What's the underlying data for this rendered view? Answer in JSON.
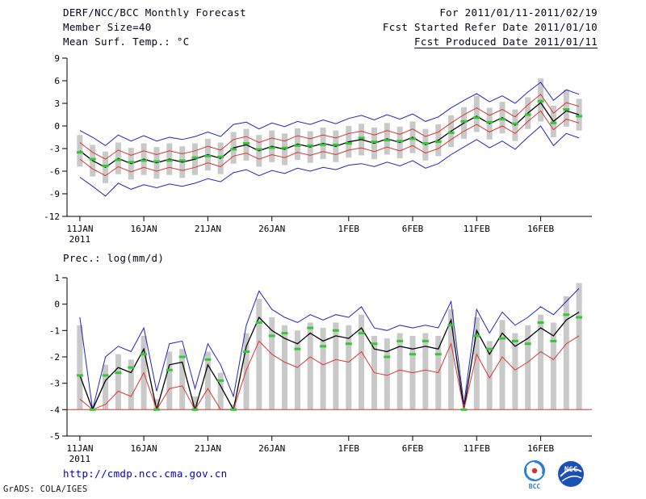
{
  "header": {
    "title": "DERF/NCC/BCC Monthly Forecast",
    "member_size": "Member Size=40",
    "for_range": "For 2011/01/11-2011/02/19",
    "fcst_started": "Fcst Started Refer Date 2011/01/10",
    "fcst_produced": "Fcst Produced Date 2011/01/11"
  },
  "footer": {
    "url": "http://cmdp.ncc.cma.gov.cn",
    "grads_credit": "GrADS: COLA/IGES"
  },
  "logos": {
    "bcc": "BCC",
    "ncc": "NCC"
  },
  "colors": {
    "envelope_blue": "#2222c8",
    "quartile_red": "#e03232",
    "mean_black": "#000000",
    "median_green": "#35c835",
    "spread_bar_gray": "#c9c9c9",
    "url_link": "#0000cc",
    "header_text": "#04041c"
  },
  "chart_data": [
    {
      "type": "line",
      "title": "Mean Surf. Temp.: °C",
      "x_sub_label": "2011",
      "ylim": [
        -12,
        9
      ],
      "yticks": [
        9,
        6,
        3,
        0,
        -3,
        -6,
        -9,
        -12
      ],
      "xticks": [
        {
          "label": "11JAN",
          "day": 0
        },
        {
          "label": "16JAN",
          "day": 5
        },
        {
          "label": "21JAN",
          "day": 10
        },
        {
          "label": "26JAN",
          "day": 15
        },
        {
          "label": "1FEB",
          "day": 21
        },
        {
          "label": "6FEB",
          "day": 26
        },
        {
          "label": "11FEB",
          "day": 31
        },
        {
          "label": "16FEB",
          "day": 36
        }
      ],
      "bars": {
        "name": "ensemble-spread-bar",
        "color": "#c9c9c9",
        "low": [
          -5.4,
          -6.7,
          -7.6,
          -6.4,
          -7.1,
          -6.5,
          -7.0,
          -6.5,
          -6.9,
          -6.5,
          -5.9,
          -6.4,
          -5.0,
          -4.6,
          -5.4,
          -4.8,
          -5.2,
          -4.5,
          -4.9,
          -4.4,
          -4.8,
          -4.2,
          -3.9,
          -4.4,
          -3.8,
          -4.3,
          -3.6,
          -4.6,
          -4.0,
          -2.8,
          -1.7,
          -0.8,
          -1.8,
          -1.0,
          -2.0,
          -0.4,
          0.6,
          -1.5,
          -0.1,
          -0.6
        ],
        "high": [
          -1.2,
          -2.5,
          -3.4,
          -2.2,
          -2.9,
          -2.3,
          -2.8,
          -2.3,
          -2.7,
          -2.3,
          -1.7,
          -2.2,
          -0.8,
          -0.4,
          -1.2,
          -0.6,
          -1.0,
          -0.3,
          -0.7,
          -0.2,
          -0.6,
          0.0,
          0.3,
          -0.2,
          0.4,
          -0.1,
          0.6,
          -0.4,
          0.2,
          1.4,
          2.5,
          4.0,
          2.4,
          3.2,
          2.2,
          3.8,
          6.3,
          2.7,
          4.8,
          3.6
        ]
      },
      "series": [
        {
          "name": "ensemble-max-line",
          "color": "#2222c8",
          "values": [
            -0.6,
            -1.5,
            -2.6,
            -1.2,
            -2.0,
            -1.3,
            -2.0,
            -1.5,
            -1.8,
            -1.4,
            -0.8,
            -1.4,
            0.2,
            0.5,
            -0.4,
            0.4,
            -0.1,
            0.6,
            0.2,
            0.8,
            0.3,
            1.0,
            1.4,
            0.8,
            1.5,
            0.9,
            1.6,
            0.6,
            1.2,
            2.4,
            3.4,
            4.3,
            3.2,
            4.0,
            3.0,
            4.5,
            5.8,
            3.4,
            4.8,
            4.2
          ]
        },
        {
          "name": "upper-quartile-line",
          "color": "#e03232",
          "values": [
            -2.2,
            -3.5,
            -4.4,
            -3.2,
            -3.9,
            -3.3,
            -3.8,
            -3.3,
            -3.7,
            -3.3,
            -2.7,
            -3.2,
            -1.8,
            -1.4,
            -2.2,
            -1.6,
            -2.0,
            -1.3,
            -1.7,
            -1.2,
            -1.6,
            -1.0,
            -0.7,
            -1.2,
            -0.6,
            -1.1,
            -0.4,
            -1.4,
            -0.8,
            0.4,
            1.5,
            2.4,
            1.4,
            2.2,
            1.2,
            2.8,
            4.2,
            1.7,
            3.1,
            2.6
          ]
        },
        {
          "name": "ensemble-mean-line",
          "color": "#000000",
          "width": 1.3,
          "values": [
            -3.3,
            -4.6,
            -5.5,
            -4.3,
            -5.0,
            -4.4,
            -4.9,
            -4.4,
            -4.8,
            -4.4,
            -3.8,
            -4.3,
            -2.9,
            -2.5,
            -3.3,
            -2.7,
            -3.1,
            -2.4,
            -2.8,
            -2.3,
            -2.7,
            -2.1,
            -1.8,
            -2.3,
            -1.7,
            -2.2,
            -1.5,
            -2.5,
            -1.9,
            -0.7,
            0.4,
            1.3,
            0.3,
            1.1,
            0.1,
            1.7,
            3.1,
            0.6,
            2.0,
            1.5
          ]
        },
        {
          "name": "lower-quartile-line",
          "color": "#e03232",
          "values": [
            -4.4,
            -5.7,
            -6.6,
            -5.4,
            -6.1,
            -5.5,
            -6.0,
            -5.5,
            -5.9,
            -5.5,
            -4.9,
            -5.4,
            -4.0,
            -3.6,
            -4.4,
            -3.8,
            -4.2,
            -3.5,
            -3.9,
            -3.4,
            -3.8,
            -3.2,
            -2.9,
            -3.4,
            -2.8,
            -3.3,
            -2.6,
            -3.6,
            -3.0,
            -1.8,
            -0.7,
            0.2,
            -0.8,
            0.0,
            -1.0,
            0.6,
            2.0,
            -0.5,
            0.9,
            0.4
          ]
        },
        {
          "name": "ensemble-min-line",
          "color": "#2222c8",
          "values": [
            -6.8,
            -8.0,
            -9.3,
            -7.6,
            -8.4,
            -7.8,
            -8.2,
            -7.7,
            -8.0,
            -7.6,
            -7.0,
            -7.4,
            -6.2,
            -5.8,
            -6.6,
            -5.9,
            -6.3,
            -5.6,
            -6.0,
            -5.5,
            -5.8,
            -5.2,
            -5.0,
            -5.4,
            -4.8,
            -5.3,
            -4.6,
            -5.6,
            -5.0,
            -3.8,
            -2.8,
            -1.8,
            -2.9,
            -2.0,
            -3.1,
            -1.5,
            0.0,
            -2.6,
            -1.0,
            -1.6
          ]
        }
      ],
      "markers": {
        "name": "median-tick",
        "color": "#35c835",
        "values": [
          -3.5,
          -4.4,
          -5.3,
          -4.5,
          -4.8,
          -4.6,
          -4.7,
          -4.6,
          -4.6,
          -4.2,
          -4.0,
          -4.1,
          -3.1,
          -2.3,
          -3.1,
          -2.9,
          -2.9,
          -2.6,
          -2.6,
          -2.5,
          -2.5,
          -2.3,
          -1.6,
          -2.1,
          -1.9,
          -2.0,
          -1.7,
          -2.3,
          -2.1,
          -0.9,
          0.6,
          1.1,
          0.5,
          0.9,
          0.3,
          1.5,
          3.3,
          0.4,
          2.2,
          1.3
        ]
      }
    },
    {
      "type": "line",
      "title": "Prec.: log(mm/d)",
      "x_sub_label": "2011",
      "ylim": [
        -5,
        1
      ],
      "yticks": [
        1,
        0,
        -1,
        -2,
        -3,
        -4,
        -5
      ],
      "xticks": [
        {
          "label": "11JAN",
          "day": 0
        },
        {
          "label": "16JAN",
          "day": 5
        },
        {
          "label": "21JAN",
          "day": 10
        },
        {
          "label": "26JAN",
          "day": 15
        },
        {
          "label": "1FEB",
          "day": 21
        },
        {
          "label": "6FEB",
          "day": 26
        },
        {
          "label": "11FEB",
          "day": 31
        },
        {
          "label": "16FEB",
          "day": 36
        }
      ],
      "bars": {
        "name": "ensemble-spread-bar",
        "color": "#c9c9c9",
        "low": -4.0,
        "high": [
          -0.8,
          -4.0,
          -2.3,
          -1.9,
          -2.1,
          -1.2,
          -3.6,
          -1.8,
          -1.7,
          -3.5,
          -1.8,
          -2.6,
          -3.8,
          -1.1,
          0.2,
          -0.5,
          -0.8,
          -1.0,
          -0.7,
          -0.9,
          -0.7,
          -0.8,
          -0.4,
          -1.2,
          -1.3,
          -1.1,
          -1.2,
          -1.1,
          -1.2,
          -0.2,
          -4.0,
          -0.5,
          -1.4,
          -0.6,
          -1.1,
          -0.8,
          -0.4,
          -0.7,
          0.3,
          0.8
        ]
      },
      "series": [
        {
          "name": "ensemble-max-line",
          "color": "#2222c8",
          "values": [
            -0.5,
            -4.0,
            -2.0,
            -1.6,
            -1.8,
            -0.9,
            -3.3,
            -1.5,
            -1.4,
            -3.2,
            -1.5,
            -2.3,
            -3.5,
            -0.8,
            0.5,
            -0.2,
            -0.5,
            -0.7,
            -0.4,
            -0.6,
            -0.4,
            -0.5,
            -0.1,
            -0.9,
            -1.0,
            -0.8,
            -0.9,
            -0.8,
            -0.9,
            0.1,
            -3.8,
            -0.2,
            -1.1,
            -0.3,
            -0.8,
            -0.5,
            -0.1,
            -0.4,
            0.1,
            0.6
          ]
        },
        {
          "name": "ensemble-mean-line",
          "color": "#000000",
          "width": 1.3,
          "values": [
            -2.7,
            -4.0,
            -2.9,
            -2.4,
            -2.6,
            -1.7,
            -4.0,
            -2.3,
            -2.2,
            -4.0,
            -2.3,
            -3.1,
            -4.0,
            -1.6,
            -0.5,
            -1.0,
            -1.3,
            -1.5,
            -1.1,
            -1.4,
            -1.2,
            -1.3,
            -0.9,
            -1.7,
            -1.8,
            -1.6,
            -1.7,
            -1.6,
            -1.7,
            -0.6,
            -4.0,
            -1.0,
            -1.9,
            -1.1,
            -1.6,
            -1.3,
            -0.9,
            -1.2,
            -0.6,
            -0.3
          ]
        },
        {
          "name": "lower-quartile-line",
          "color": "#e03232",
          "values": [
            -3.6,
            -4.0,
            -3.8,
            -3.3,
            -3.5,
            -2.6,
            -4.0,
            -3.2,
            -3.1,
            -4.0,
            -3.2,
            -4.0,
            -4.0,
            -2.5,
            -1.4,
            -1.9,
            -2.2,
            -2.4,
            -2.0,
            -2.3,
            -2.1,
            -2.2,
            -1.8,
            -2.6,
            -2.7,
            -2.5,
            -2.6,
            -2.5,
            -2.6,
            -1.5,
            -4.0,
            -1.9,
            -2.8,
            -2.0,
            -2.5,
            -2.2,
            -1.8,
            -2.1,
            -1.5,
            -1.2
          ]
        },
        {
          "name": "precip-floor-line",
          "color": "#e03232",
          "constant": -4.0
        }
      ],
      "markers": {
        "name": "median-tick",
        "color": "#35c835",
        "values": [
          -2.7,
          -4.0,
          -2.7,
          -2.6,
          -2.4,
          -1.9,
          -4.0,
          -2.5,
          -2.0,
          -4.0,
          -2.1,
          -2.9,
          -4.0,
          -1.8,
          -0.7,
          -1.2,
          -1.1,
          -1.7,
          -0.9,
          -1.6,
          -1.0,
          -1.5,
          -1.1,
          -1.5,
          -2.0,
          -1.4,
          -1.9,
          -1.4,
          -1.9,
          -0.8,
          -4.0,
          -1.2,
          -1.7,
          -1.3,
          -1.4,
          -1.5,
          -0.7,
          -1.4,
          -0.4,
          -0.5
        ]
      }
    }
  ]
}
